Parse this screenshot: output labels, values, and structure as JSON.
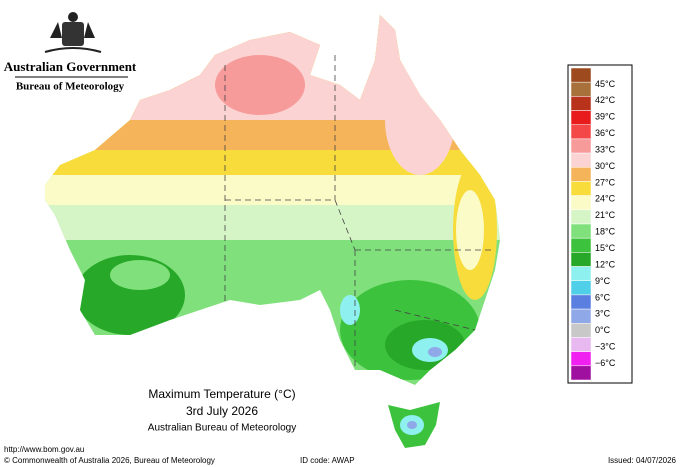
{
  "header": {
    "government": "Australian Government",
    "agency": "Bureau of Meteorology"
  },
  "legend": {
    "labels": [
      "45°C",
      "42°C",
      "39°C",
      "36°C",
      "33°C",
      "30°C",
      "27°C",
      "24°C",
      "21°C",
      "18°C",
      "15°C",
      "12°C",
      "9°C",
      "6°C",
      "3°C",
      "0°C",
      "−3°C",
      "−6°C"
    ],
    "colors": [
      "#9c4a1e",
      "#a8703a",
      "#b8321c",
      "#e81c1c",
      "#f44848",
      "#f79a9a",
      "#fbd3d3",
      "#f6b45a",
      "#f8dc3c",
      "#fbfbc8",
      "#d6f5c6",
      "#7fe07c",
      "#3cc23c",
      "#28a828",
      "#8ff0f0",
      "#4fd0e8",
      "#5a7fe0",
      "#8fa8e8",
      "#c8c8c8",
      "#e8b8f0",
      "#f020f0",
      "#a010a0"
    ]
  },
  "title": {
    "lines": [
      "Maximum Temperature (°C)",
      "3rd July 2026",
      "Australian Bureau of Meteorology"
    ]
  },
  "footer": {
    "url": "http://www.bom.gov.au",
    "copyright": "© Commonwealth of Australia 2026, Bureau of Meteorology",
    "id_code": "ID code: AWAP",
    "issued": "Issued: 04/07/2026"
  }
}
